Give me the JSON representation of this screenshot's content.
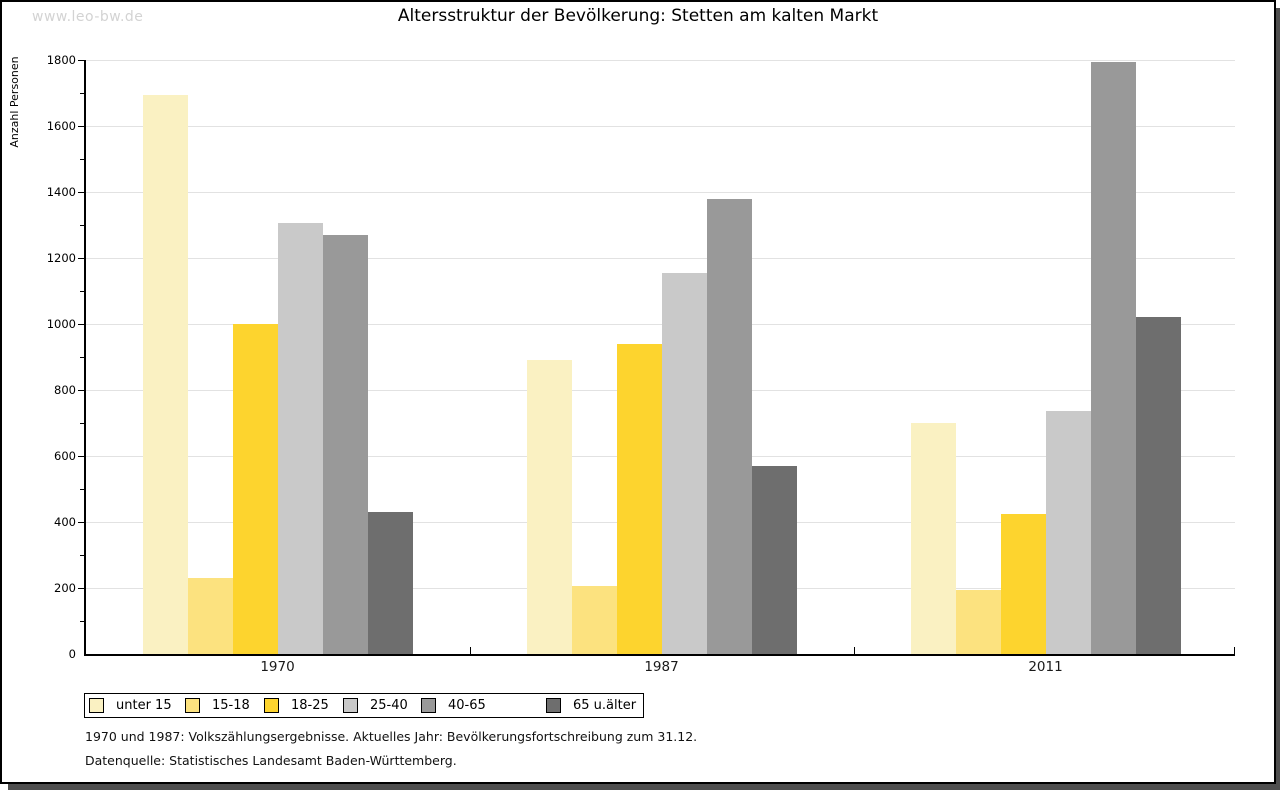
{
  "watermark": "www.leo-bw.de",
  "title": "Altersstruktur der Bevölkerung: Stetten am kalten Markt",
  "footnotes": {
    "line1": "1970 und 1987: Volkszählungsergebnisse. Aktuelles Jahr: Bevölkerungsfortschreibung zum 31.12.",
    "line2": "Datenquelle: Statistisches Landesamt Baden-Württemberg."
  },
  "chart_data": {
    "type": "bar",
    "title": "Altersstruktur der Bevölkerung: Stetten am kalten Markt",
    "xlabel": "",
    "ylabel": "Anzahl Personen",
    "categories": [
      "1970",
      "1987",
      "2011"
    ],
    "series": [
      {
        "name": "unter 15",
        "color": "#faf1c2",
        "values": [
          1695,
          890,
          700
        ]
      },
      {
        "name": "15-18",
        "color": "#fce27f",
        "values": [
          230,
          205,
          195
        ]
      },
      {
        "name": "18-25",
        "color": "#fdd42e",
        "values": [
          1000,
          940,
          425
        ]
      },
      {
        "name": "25-40",
        "color": "#c9c9c9",
        "values": [
          1305,
          1155,
          735
        ]
      },
      {
        "name": "40-65",
        "color": "#999999",
        "values": [
          1270,
          1380,
          1795
        ]
      },
      {
        "name": "65 u.älter",
        "color": "#6e6e6e",
        "values": [
          430,
          570,
          1020
        ]
      }
    ],
    "ylim": [
      0,
      1800
    ],
    "ytick_step": 200,
    "yminor_step": 100,
    "grid": true,
    "legend_position": "bottom-left",
    "axis_colors": {
      "grid": "#e2e2e2",
      "axis": "#000000",
      "shadow": "#4e4e4e",
      "watermark": "#d3d3d3"
    }
  }
}
